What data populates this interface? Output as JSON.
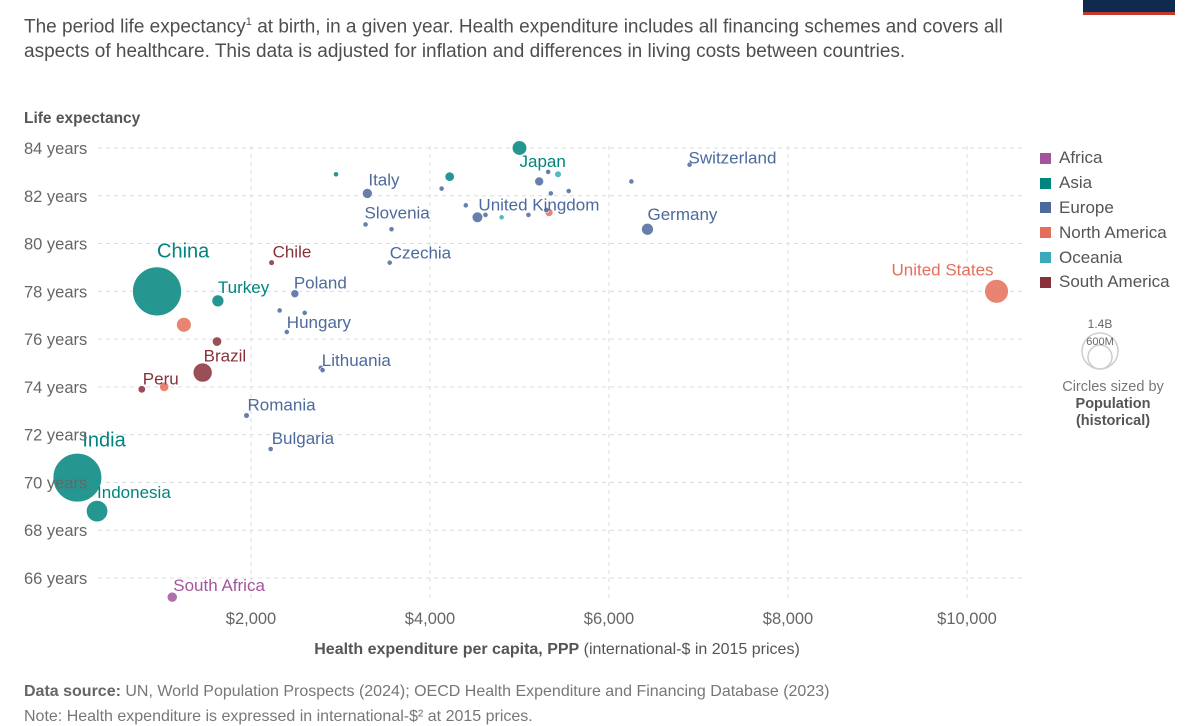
{
  "header": {
    "subtitle_pre": "The period life expectancy",
    "subtitle_sup": "1",
    "subtitle_post": " at birth, in a given year. Health expenditure includes all financing schemes and covers all aspects of healthcare. This data is adjusted for inflation and differences in living costs between countries."
  },
  "footer": {
    "source_label": "Data source:",
    "source_text": " UN, World Population Prospects (2024); OECD Health Expenditure and Financing Database (2023)",
    "note_text": "Note: Health expenditure is expressed in international-$² at 2015 prices."
  },
  "legend": {
    "regions": [
      {
        "name": "Africa",
        "color": "#a2559c"
      },
      {
        "name": "Asia",
        "color": "#00847e"
      },
      {
        "name": "Europe",
        "color": "#4c6a9c"
      },
      {
        "name": "North America",
        "color": "#e56e5a"
      },
      {
        "name": "Oceania",
        "color": "#38aaba"
      },
      {
        "name": "South America",
        "color": "#883039"
      }
    ],
    "size_big": "1.4B",
    "size_small": "600M",
    "size_caption": "Circles sized by",
    "size_title_1": "Population",
    "size_title_2": "(historical)"
  },
  "chart_data": {
    "type": "scatter",
    "xlabel": "Health expenditure per capita, PPP",
    "xlabel_suffix": " (international-$ in 2015 prices)",
    "ylabel": "Life expectancy",
    "xlim": [
      0,
      10500
    ],
    "ylim": [
      65,
      84.5
    ],
    "x_ticks": [
      2000,
      4000,
      6000,
      8000,
      10000
    ],
    "x_tick_labels": [
      "$2,000",
      "$4,000",
      "$6,000",
      "$8,000",
      "$10,000"
    ],
    "y_ticks": [
      66,
      68,
      70,
      72,
      74,
      76,
      78,
      80,
      82,
      84
    ],
    "y_tick_labels": [
      "66 years",
      "68 years",
      "70 years",
      "72 years",
      "74 years",
      "76 years",
      "78 years",
      "80 years",
      "82 years",
      "84 years"
    ],
    "points": [
      {
        "label": "China",
        "region": "Asia",
        "x": 950,
        "y": 78.0,
        "pop_m": 1410
      },
      {
        "label": "India",
        "region": "Asia",
        "x": 60,
        "y": 70.2,
        "pop_m": 1400
      },
      {
        "label": "Indonesia",
        "region": "Asia",
        "x": 280,
        "y": 68.8,
        "pop_m": 270
      },
      {
        "label": "Turkey",
        "region": "Asia",
        "x": 1630,
        "y": 77.6,
        "pop_m": 84
      },
      {
        "label": "Japan",
        "region": "Asia",
        "x": 5000,
        "y": 84.0,
        "pop_m": 125
      },
      {
        "label": "",
        "region": "Asia",
        "x": 4220,
        "y": 82.8,
        "pop_m": 52
      },
      {
        "label": "",
        "region": "Asia",
        "x": 2950,
        "y": 82.9,
        "pop_m": 9
      },
      {
        "label": "United States",
        "region": "North America",
        "x": 10330,
        "y": 78.0,
        "pop_m": 332
      },
      {
        "label": "",
        "region": "North America",
        "x": 1250,
        "y": 76.6,
        "pop_m": 128
      },
      {
        "label": "",
        "region": "North America",
        "x": 5330,
        "y": 81.3,
        "pop_m": 38
      },
      {
        "label": "Switzerland",
        "region": "Europe",
        "x": 6900,
        "y": 83.3,
        "pop_m": 9
      },
      {
        "label": "Italy",
        "region": "Europe",
        "x": 3300,
        "y": 82.1,
        "pop_m": 59
      },
      {
        "label": "United Kingdom",
        "region": "Europe",
        "x": 4530,
        "y": 81.1,
        "pop_m": 67
      },
      {
        "label": "Germany",
        "region": "Europe",
        "x": 6430,
        "y": 80.6,
        "pop_m": 83
      },
      {
        "label": "Slovenia",
        "region": "Europe",
        "x": 3280,
        "y": 80.8,
        "pop_m": 2
      },
      {
        "label": "Czechia",
        "region": "Europe",
        "x": 3550,
        "y": 79.2,
        "pop_m": 11
      },
      {
        "label": "Poland",
        "region": "Europe",
        "x": 2490,
        "y": 77.9,
        "pop_m": 38
      },
      {
        "label": "Hungary",
        "region": "Europe",
        "x": 2400,
        "y": 76.3,
        "pop_m": 10
      },
      {
        "label": "Lithuania",
        "region": "Europe",
        "x": 2780,
        "y": 74.8,
        "pop_m": 3
      },
      {
        "label": "Romania",
        "region": "Europe",
        "x": 1950,
        "y": 72.8,
        "pop_m": 19
      },
      {
        "label": "Bulgaria",
        "region": "Europe",
        "x": 2220,
        "y": 71.4,
        "pop_m": 7
      },
      {
        "label": "",
        "region": "Europe",
        "x": 5220,
        "y": 82.6,
        "pop_m": 47
      },
      {
        "label": "",
        "region": "Europe",
        "x": 5320,
        "y": 83.0,
        "pop_m": 5
      },
      {
        "label": "",
        "region": "Europe",
        "x": 5550,
        "y": 82.2,
        "pop_m": 10
      },
      {
        "label": "",
        "region": "Europe",
        "x": 5350,
        "y": 82.1,
        "pop_m": 5
      },
      {
        "label": "",
        "region": "Europe",
        "x": 6250,
        "y": 82.6,
        "pop_m": 5
      },
      {
        "label": "",
        "region": "Europe",
        "x": 4400,
        "y": 81.6,
        "pop_m": 6
      },
      {
        "label": "",
        "region": "Europe",
        "x": 4130,
        "y": 82.3,
        "pop_m": 5
      },
      {
        "label": "",
        "region": "Europe",
        "x": 5100,
        "y": 81.2,
        "pop_m": 9
      },
      {
        "label": "",
        "region": "Europe",
        "x": 4620,
        "y": 81.2,
        "pop_m": 10
      },
      {
        "label": "",
        "region": "Europe",
        "x": 3570,
        "y": 80.6,
        "pop_m": 1.3
      },
      {
        "label": "",
        "region": "Europe",
        "x": 2320,
        "y": 77.2,
        "pop_m": 1.9
      },
      {
        "label": "",
        "region": "Europe",
        "x": 2600,
        "y": 77.1,
        "pop_m": 5.4
      },
      {
        "label": "",
        "region": "Europe",
        "x": 2800,
        "y": 74.7,
        "pop_m": 1.9
      },
      {
        "label": "",
        "region": "Europe",
        "x": 5300,
        "y": 81.4,
        "pop_m": 17
      },
      {
        "label": "",
        "region": "Oceania",
        "x": 5430,
        "y": 82.9,
        "pop_m": 26
      },
      {
        "label": "",
        "region": "Oceania",
        "x": 4800,
        "y": 81.1,
        "pop_m": 5
      },
      {
        "label": "Chile",
        "region": "South America",
        "x": 2230,
        "y": 79.2,
        "pop_m": 19
      },
      {
        "label": "Brazil",
        "region": "South America",
        "x": 1460,
        "y": 74.6,
        "pop_m": 214
      },
      {
        "label": "Peru",
        "region": "South America",
        "x": 780,
        "y": 73.9,
        "pop_m": 33
      },
      {
        "label": "",
        "region": "South America",
        "x": 1620,
        "y": 75.9,
        "pop_m": 51
      },
      {
        "label": "",
        "region": "North America",
        "x": 1030,
        "y": 74.0,
        "pop_m": 51
      },
      {
        "label": "South Africa",
        "region": "Africa",
        "x": 1120,
        "y": 65.2,
        "pop_m": 60
      }
    ],
    "labels": [
      {
        "text": "China",
        "ref": "China",
        "anchor": "start",
        "dx": 0,
        "dy": -34,
        "size": 20
      },
      {
        "text": "India",
        "ref": "India",
        "anchor": "start",
        "dx": 5,
        "dy": -31,
        "size": 20
      },
      {
        "text": "Indonesia",
        "ref": "Indonesia",
        "anchor": "start",
        "dx": 0,
        "dy": -13,
        "size": 17
      },
      {
        "text": "Turkey",
        "ref": "Turkey",
        "anchor": "start",
        "dx": 0,
        "dy": -8,
        "size": 17
      },
      {
        "text": "Japan",
        "ref": "Japan",
        "anchor": "start",
        "dx": 0,
        "dy": 19,
        "size": 17
      },
      {
        "text": "United States",
        "ref": "United States",
        "anchor": "end",
        "dx": -3,
        "dy": -16,
        "size": 17
      },
      {
        "text": "Switzerland",
        "ref": "Switzerland",
        "anchor": "start",
        "dx": -1,
        "dy": -1,
        "size": 17
      },
      {
        "text": "Italy",
        "ref": "Italy",
        "anchor": "start",
        "dx": 1,
        "dy": -8,
        "size": 17
      },
      {
        "text": "United Kingdom",
        "ref": "United Kingdom",
        "anchor": "start",
        "dx": 1,
        "dy": -7,
        "size": 17
      },
      {
        "text": "Germany",
        "ref": "Germany",
        "anchor": "start",
        "dx": 0,
        "dy": -9,
        "size": 17
      },
      {
        "text": "Slovenia",
        "ref": "Slovenia",
        "anchor": "start",
        "dx": -1,
        "dy": -6,
        "size": 17
      },
      {
        "text": "Czechia",
        "ref": "Czechia",
        "anchor": "start",
        "dx": 0,
        "dy": -4,
        "size": 17
      },
      {
        "text": "Poland",
        "ref": "Poland",
        "anchor": "start",
        "dx": -1,
        "dy": -5,
        "size": 17
      },
      {
        "text": "Hungary",
        "ref": "Hungary",
        "anchor": "start",
        "dx": 0,
        "dy": -4,
        "size": 17
      },
      {
        "text": "Lithuania",
        "ref": "Lithuania",
        "anchor": "start",
        "dx": 1,
        "dy": -2,
        "size": 17
      },
      {
        "text": "Romania",
        "ref": "Romania",
        "anchor": "start",
        "dx": 1,
        "dy": -5,
        "size": 17
      },
      {
        "text": "Bulgaria",
        "ref": "Bulgaria",
        "anchor": "start",
        "dx": 1,
        "dy": -5,
        "size": 17
      },
      {
        "text": "Chile",
        "ref": "Chile",
        "anchor": "start",
        "dx": 1,
        "dy": -5,
        "size": 17
      },
      {
        "text": "Brazil",
        "ref": "Brazil",
        "anchor": "start",
        "dx": 1,
        "dy": -11,
        "size": 17
      },
      {
        "text": "Peru",
        "ref": "Peru",
        "anchor": "start",
        "dx": 1,
        "dy": -5,
        "size": 17
      },
      {
        "text": "South Africa",
        "ref": "South Africa",
        "anchor": "start",
        "dx": 1,
        "dy": -6,
        "size": 17
      }
    ]
  }
}
